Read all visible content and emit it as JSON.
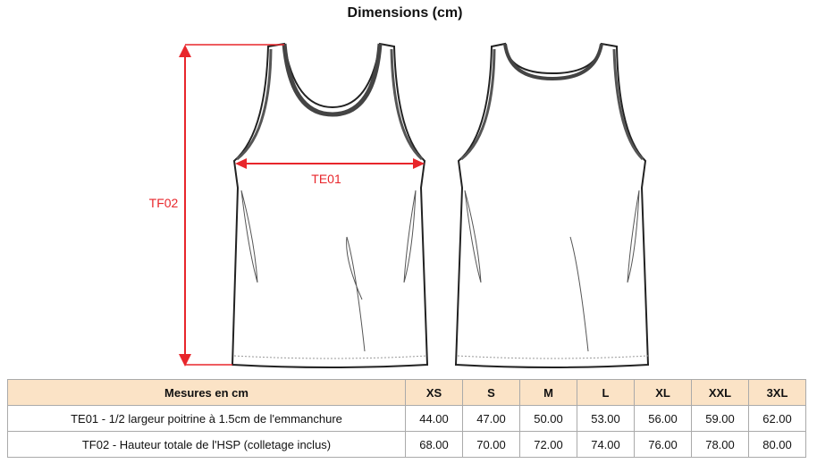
{
  "title": "Dimensions (cm)",
  "labels": {
    "width": "TE01",
    "height": "TF02"
  },
  "colors": {
    "measure": "#e8262b",
    "header_bg": "#fbe3c6"
  },
  "table": {
    "header": "Mesures en cm",
    "sizes": [
      "XS",
      "S",
      "M",
      "L",
      "XL",
      "XXL",
      "3XL"
    ],
    "rows": [
      {
        "label": "TE01 - 1/2 largeur poitrine à 1.5cm de l'emmanchure",
        "values": [
          "44.00",
          "47.00",
          "50.00",
          "53.00",
          "56.00",
          "59.00",
          "62.00"
        ]
      },
      {
        "label": "TF02 - Hauteur totale de l'HSP (colletage inclus)",
        "values": [
          "68.00",
          "70.00",
          "72.00",
          "74.00",
          "76.00",
          "78.00",
          "80.00"
        ]
      }
    ]
  }
}
